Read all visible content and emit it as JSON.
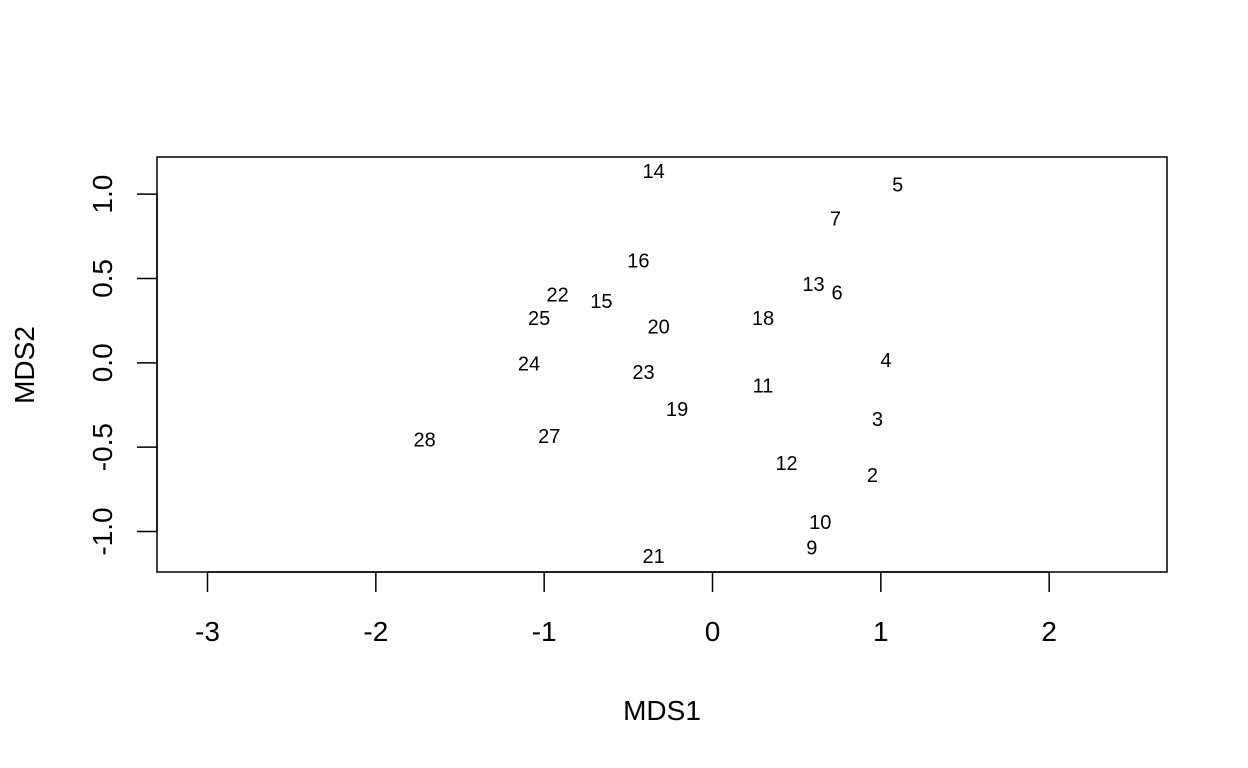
{
  "chart_data": {
    "type": "scatter",
    "title": "",
    "xlabel": "MDS1",
    "ylabel": "MDS2",
    "xlim": [
      -3.3,
      2.7
    ],
    "ylim": [
      -1.24,
      1.22
    ],
    "x_ticks": [
      -3,
      -2,
      -1,
      0,
      1,
      2
    ],
    "x_tick_labels": [
      "-3",
      "-2",
      "-1",
      "0",
      "1",
      "2"
    ],
    "y_ticks": [
      -1.0,
      -0.5,
      0.0,
      0.5,
      1.0
    ],
    "y_tick_labels": [
      "-1.0",
      "-0.5",
      "0.0",
      "0.5",
      "1.0"
    ],
    "grid": false,
    "points": [
      {
        "label": "14",
        "x": -0.35,
        "y": 1.13
      },
      {
        "label": "5",
        "x": 1.1,
        "y": 1.05
      },
      {
        "label": "7",
        "x": 0.73,
        "y": 0.85
      },
      {
        "label": "16",
        "x": -0.44,
        "y": 0.6
      },
      {
        "label": "13",
        "x": 0.6,
        "y": 0.46
      },
      {
        "label": "6",
        "x": 0.74,
        "y": 0.41
      },
      {
        "label": "22",
        "x": -0.92,
        "y": 0.4
      },
      {
        "label": "15",
        "x": -0.66,
        "y": 0.36
      },
      {
        "label": "25",
        "x": -1.03,
        "y": 0.26
      },
      {
        "label": "18",
        "x": 0.3,
        "y": 0.26
      },
      {
        "label": "20",
        "x": -0.32,
        "y": 0.21
      },
      {
        "label": "4",
        "x": 1.03,
        "y": 0.01
      },
      {
        "label": "24",
        "x": -1.09,
        "y": -0.01
      },
      {
        "label": "23",
        "x": -0.41,
        "y": -0.06
      },
      {
        "label": "11",
        "x": 0.3,
        "y": -0.14
      },
      {
        "label": "19",
        "x": -0.21,
        "y": -0.28
      },
      {
        "label": "3",
        "x": 0.98,
        "y": -0.34
      },
      {
        "label": "27",
        "x": -0.97,
        "y": -0.44
      },
      {
        "label": "28",
        "x": -1.71,
        "y": -0.46
      },
      {
        "label": "12",
        "x": 0.44,
        "y": -0.6
      },
      {
        "label": "2",
        "x": 0.95,
        "y": -0.67
      },
      {
        "label": "10",
        "x": 0.64,
        "y": -0.95
      },
      {
        "label": "9",
        "x": 0.59,
        "y": -1.1
      },
      {
        "label": "21",
        "x": -0.35,
        "y": -1.15
      }
    ]
  }
}
